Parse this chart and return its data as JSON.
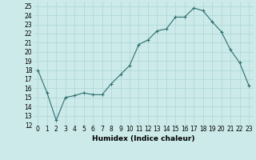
{
  "x": [
    0,
    1,
    2,
    3,
    4,
    5,
    6,
    7,
    8,
    9,
    10,
    11,
    12,
    13,
    14,
    15,
    16,
    17,
    18,
    19,
    20,
    21,
    22,
    23
  ],
  "y": [
    18,
    15.5,
    12.5,
    15,
    15.2,
    15.5,
    15.3,
    15.3,
    16.5,
    17.5,
    18.5,
    20.8,
    21.3,
    22.3,
    22.5,
    23.8,
    23.8,
    24.8,
    24.5,
    23.3,
    22.2,
    20.2,
    18.8,
    16.3
  ],
  "xlabel": "Humidex (Indice chaleur)",
  "xlim": [
    -0.5,
    23.5
  ],
  "ylim": [
    12,
    25.5
  ],
  "yticks": [
    12,
    13,
    14,
    15,
    16,
    17,
    18,
    19,
    20,
    21,
    22,
    23,
    24,
    25
  ],
  "xticks": [
    0,
    1,
    2,
    3,
    4,
    5,
    6,
    7,
    8,
    9,
    10,
    11,
    12,
    13,
    14,
    15,
    16,
    17,
    18,
    19,
    20,
    21,
    22,
    23
  ],
  "line_color": "#2d6e6e",
  "marker": "+",
  "bg_color": "#cdeaea",
  "grid_color": "#b0d8d8",
  "label_fontsize": 6.5,
  "tick_fontsize": 5.5
}
